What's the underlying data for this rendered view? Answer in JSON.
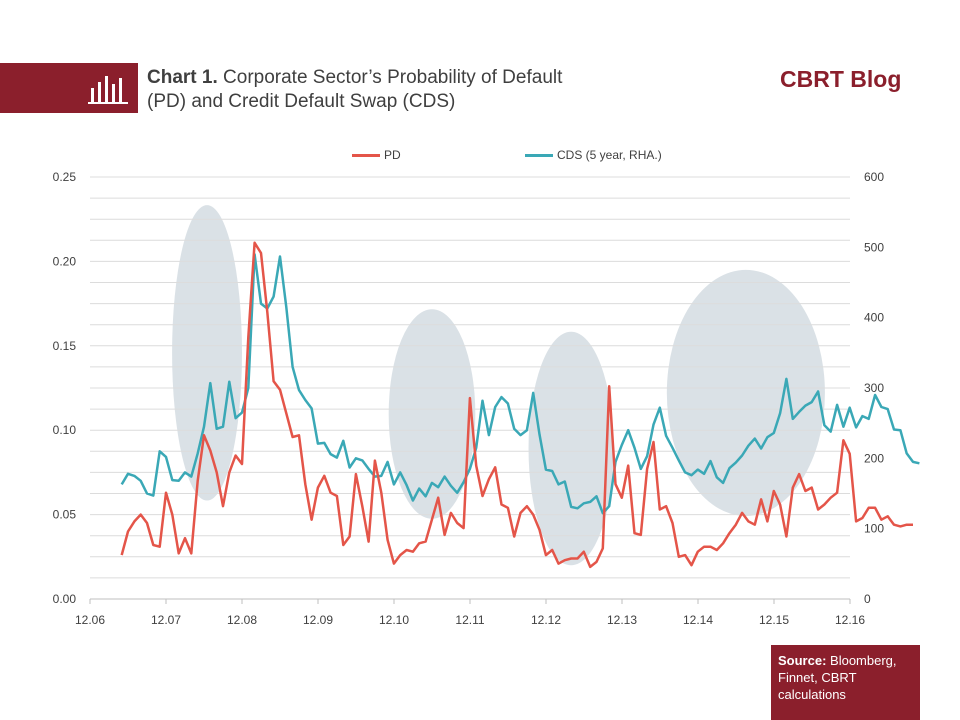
{
  "header": {
    "chart_number": "Chart 1.",
    "title_line1": "Corporate Sector’s Probability  of Default",
    "title_line2": "(PD) and Credit  Default Swap (CDS)",
    "brand": "CBRT Blog"
  },
  "source": {
    "label": "Source:",
    "text": "Bloomberg, Finnet, CBRT calculations"
  },
  "colors": {
    "pd": "#e45549",
    "cds": "#3aa8b6",
    "ellipse": "#cdd7de",
    "brand": "#8b1f2c"
  },
  "chart_data": {
    "type": "line",
    "x_tick_labels": [
      "12.06",
      "12.07",
      "12.08",
      "12.09",
      "12.10",
      "12.11",
      "12.12",
      "12.13",
      "12.14",
      "12.15",
      "12.16"
    ],
    "y_left": {
      "range": [
        0,
        0.25
      ],
      "ticks": [
        "0.00",
        "0.05",
        "0.10",
        "0.15",
        "0.20",
        "0.25"
      ]
    },
    "y_right": {
      "range": [
        0,
        600
      ],
      "ticks": [
        "0",
        "100",
        "200",
        "300",
        "400",
        "500",
        "600"
      ]
    },
    "grid": true,
    "legend_position": "top-center",
    "x_start": 2006.917,
    "x_step": 0.0833,
    "series": [
      {
        "name": "PD",
        "axis": "left",
        "values": [
          0.026,
          0.04,
          0.046,
          0.05,
          0.045,
          0.032,
          0.031,
          0.063,
          0.05,
          0.027,
          0.036,
          0.027,
          0.07,
          0.097,
          0.088,
          0.075,
          0.055,
          0.075,
          0.085,
          0.08,
          0.155,
          0.211,
          0.205,
          0.17,
          0.129,
          0.124,
          0.11,
          0.096,
          0.097,
          0.068,
          0.047,
          0.066,
          0.073,
          0.063,
          0.061,
          0.032,
          0.037,
          0.074,
          0.055,
          0.034,
          0.082,
          0.063,
          0.035,
          0.021,
          0.026,
          0.029,
          0.028,
          0.033,
          0.034,
          0.047,
          0.06,
          0.038,
          0.051,
          0.045,
          0.042,
          0.119,
          0.079,
          0.061,
          0.071,
          0.078,
          0.056,
          0.054,
          0.037,
          0.051,
          0.055,
          0.05,
          0.041,
          0.026,
          0.029,
          0.021,
          0.023,
          0.024,
          0.024,
          0.028,
          0.019,
          0.022,
          0.03,
          0.126,
          0.068,
          0.06,
          0.079,
          0.039,
          0.038,
          0.077,
          0.093,
          0.053,
          0.055,
          0.045,
          0.025,
          0.026,
          0.02,
          0.028,
          0.031,
          0.031,
          0.029,
          0.033,
          0.039,
          0.044,
          0.051,
          0.046,
          0.044,
          0.059,
          0.046,
          0.064,
          0.056,
          0.037,
          0.066,
          0.074,
          0.064,
          0.066,
          0.053,
          0.056,
          0.06,
          0.063,
          0.094,
          0.086,
          0.046,
          0.048,
          0.054,
          0.054,
          0.047,
          0.049,
          0.044,
          0.043,
          0.044,
          0.044
        ]
      },
      {
        "name": "CDS (5 year, RHA.)",
        "axis": "right",
        "values": [
          163,
          178,
          175,
          168,
          150,
          147,
          210,
          202,
          169,
          168,
          180,
          174,
          207,
          245,
          307,
          242,
          245,
          309,
          257,
          265,
          300,
          490,
          420,
          413,
          430,
          487,
          415,
          330,
          297,
          283,
          271,
          221,
          222,
          206,
          201,
          225,
          187,
          200,
          197,
          185,
          174,
          175,
          195,
          163,
          180,
          162,
          140,
          157,
          146,
          165,
          159,
          174,
          161,
          151,
          166,
          185,
          215,
          282,
          233,
          273,
          287,
          278,
          242,
          233,
          240,
          293,
          234,
          184,
          182,
          163,
          167,
          131,
          129,
          136,
          138,
          146,
          122,
          132,
          195,
          219,
          240,
          215,
          185,
          203,
          248,
          272,
          232,
          215,
          197,
          180,
          176,
          184,
          178,
          196,
          173,
          165,
          186,
          194,
          204,
          218,
          228,
          214,
          230,
          236,
          264,
          313,
          256,
          266,
          275,
          280,
          295,
          247,
          238,
          276,
          245,
          272,
          244,
          260,
          256,
          290,
          273,
          270,
          241,
          240,
          207,
          195,
          193
        ]
      }
    ],
    "highlight_ellipses": [
      {
        "cx": 2008.04,
        "cy": 350,
        "rx": 0.46,
        "ry": 210
      },
      {
        "cx": 2011.0,
        "cy": 263,
        "rx": 0.57,
        "ry": 149
      },
      {
        "cx": 2012.83,
        "cy": 214,
        "rx": 0.56,
        "ry": 166
      },
      {
        "cx": 2015.13,
        "cy": 293,
        "rx": 1.04,
        "ry": 175
      }
    ]
  }
}
